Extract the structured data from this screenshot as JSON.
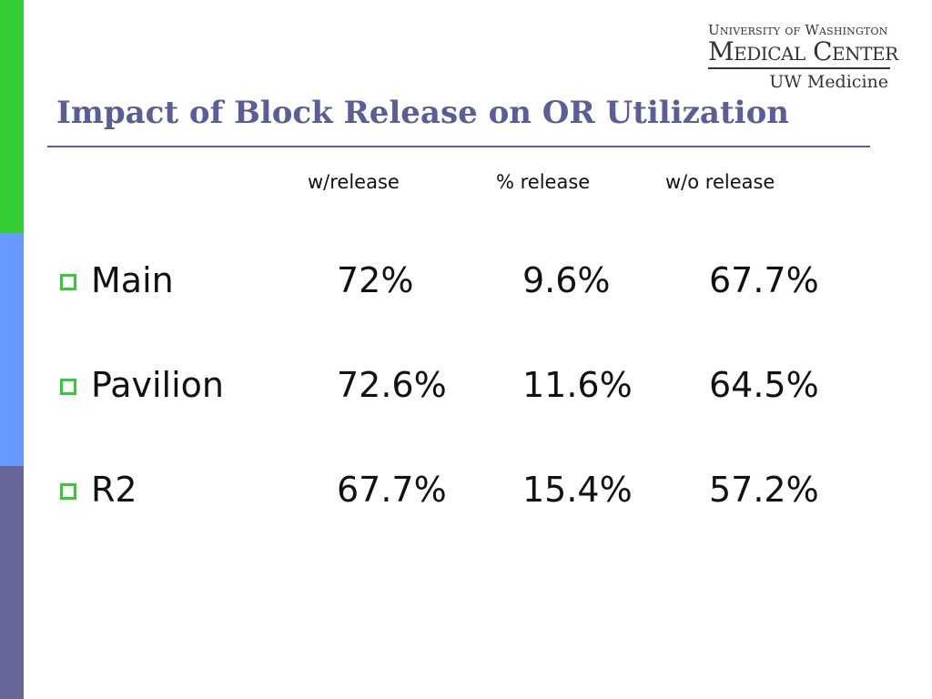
{
  "colors": {
    "strip_green": "#33cc33",
    "strip_blue": "#6699ff",
    "strip_slate": "#666699",
    "title": "#5a5d96",
    "bullet": "#33cc33"
  },
  "logo": {
    "line1": "University of Washington",
    "line2": "Medical Center",
    "line3": "UW Medicine"
  },
  "title": "Impact of Block Release on OR Utilization",
  "table": {
    "headers": [
      "w/release",
      "% release",
      "w/o release"
    ],
    "rows": [
      {
        "label": "Main",
        "with_release": "72%",
        "pct_release": "9.6%",
        "without_release": "67.7%"
      },
      {
        "label": "Pavilion",
        "with_release": "72.6%",
        "pct_release": "11.6%",
        "without_release": "64.5%"
      },
      {
        "label": "R2",
        "with_release": "67.7%",
        "pct_release": "15.4%",
        "without_release": "57.2%"
      }
    ]
  }
}
